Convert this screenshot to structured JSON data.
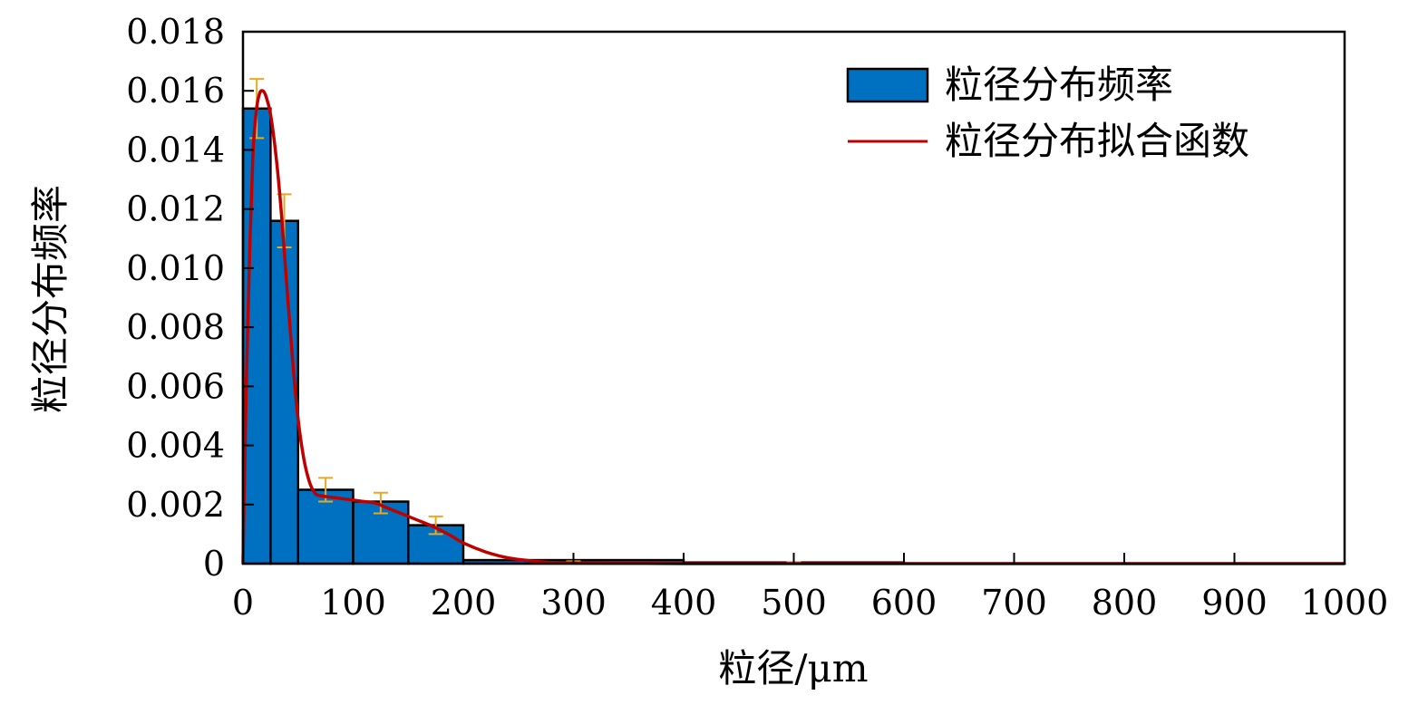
{
  "chart_data": {
    "type": "bar",
    "xlabel": "粒径/μm",
    "ylabel": "粒径分布频率",
    "xlim": [
      0,
      1000
    ],
    "ylim": [
      0,
      0.018
    ],
    "xticks": [
      0,
      100,
      200,
      300,
      400,
      500,
      600,
      700,
      800,
      900,
      1000
    ],
    "xtick_labels": [
      "0",
      "100",
      "200",
      "300",
      "400",
      "500",
      "600",
      "700",
      "800",
      "900",
      "1000"
    ],
    "yticks": [
      0,
      0.002,
      0.004,
      0.006,
      0.008,
      0.01,
      0.012,
      0.014,
      0.016,
      0.018
    ],
    "ytick_labels": [
      "0",
      "0.002",
      "0.004",
      "0.006",
      "0.008",
      "0.010",
      "0.012",
      "0.014",
      "0.016",
      "0.018"
    ],
    "legend_position": "top-right",
    "grid": false,
    "colors": {
      "bar": "#0070c0",
      "fit": "#c00000",
      "error": "#e8a820"
    },
    "series": [
      {
        "name": "粒径分布频率",
        "kind": "histogram",
        "bins": [
          {
            "x0": 0,
            "x1": 25,
            "value": 0.0154
          },
          {
            "x0": 25,
            "x1": 50,
            "value": 0.0116
          },
          {
            "x0": 50,
            "x1": 100,
            "value": 0.0025
          },
          {
            "x0": 100,
            "x1": 150,
            "value": 0.0021
          },
          {
            "x0": 150,
            "x1": 200,
            "value": 0.0013
          },
          {
            "x0": 200,
            "x1": 400,
            "value": 0.00012
          },
          {
            "x0": 400,
            "x1": 600,
            "value": 4e-05
          },
          {
            "x0": 600,
            "x1": 1000,
            "value": 1e-05
          }
        ]
      },
      {
        "name": "粒径分布拟合函数",
        "kind": "line",
        "x": [
          0,
          3,
          6,
          9,
          12,
          15,
          18,
          21,
          25,
          30,
          35,
          40,
          45,
          50,
          55,
          60,
          65,
          70,
          80,
          90,
          100,
          110,
          120,
          130,
          140,
          150,
          160,
          170,
          180,
          190,
          200,
          220,
          240,
          260,
          280,
          300,
          350,
          400,
          500,
          600,
          800,
          1000
        ],
        "y": [
          0.0,
          0.006,
          0.0105,
          0.0138,
          0.0153,
          0.0159,
          0.016,
          0.0158,
          0.0152,
          0.0138,
          0.0118,
          0.0093,
          0.0069,
          0.0049,
          0.0036,
          0.0028,
          0.0024,
          0.0023,
          0.00225,
          0.0022,
          0.00215,
          0.0021,
          0.00205,
          0.0019,
          0.00175,
          0.0016,
          0.00145,
          0.0013,
          0.00112,
          0.00092,
          0.0007,
          0.0004,
          0.0002,
          0.0001,
          4e-05,
          2e-05,
          1e-05,
          0.0,
          0.0,
          0.0,
          0.0,
          0.0
        ]
      }
    ],
    "error_bars": [
      {
        "x": 12.5,
        "low": 0.0144,
        "high": 0.0164
      },
      {
        "x": 37.5,
        "low": 0.0107,
        "high": 0.0125
      },
      {
        "x": 75,
        "low": 0.0021,
        "high": 0.0029
      },
      {
        "x": 125,
        "low": 0.0017,
        "high": 0.0024
      },
      {
        "x": 175,
        "low": 0.001,
        "high": 0.0016
      },
      {
        "x": 300,
        "low": 0.0,
        "high": 8e-05
      },
      {
        "x": 500,
        "low": 0.0,
        "high": 5e-05
      }
    ]
  }
}
